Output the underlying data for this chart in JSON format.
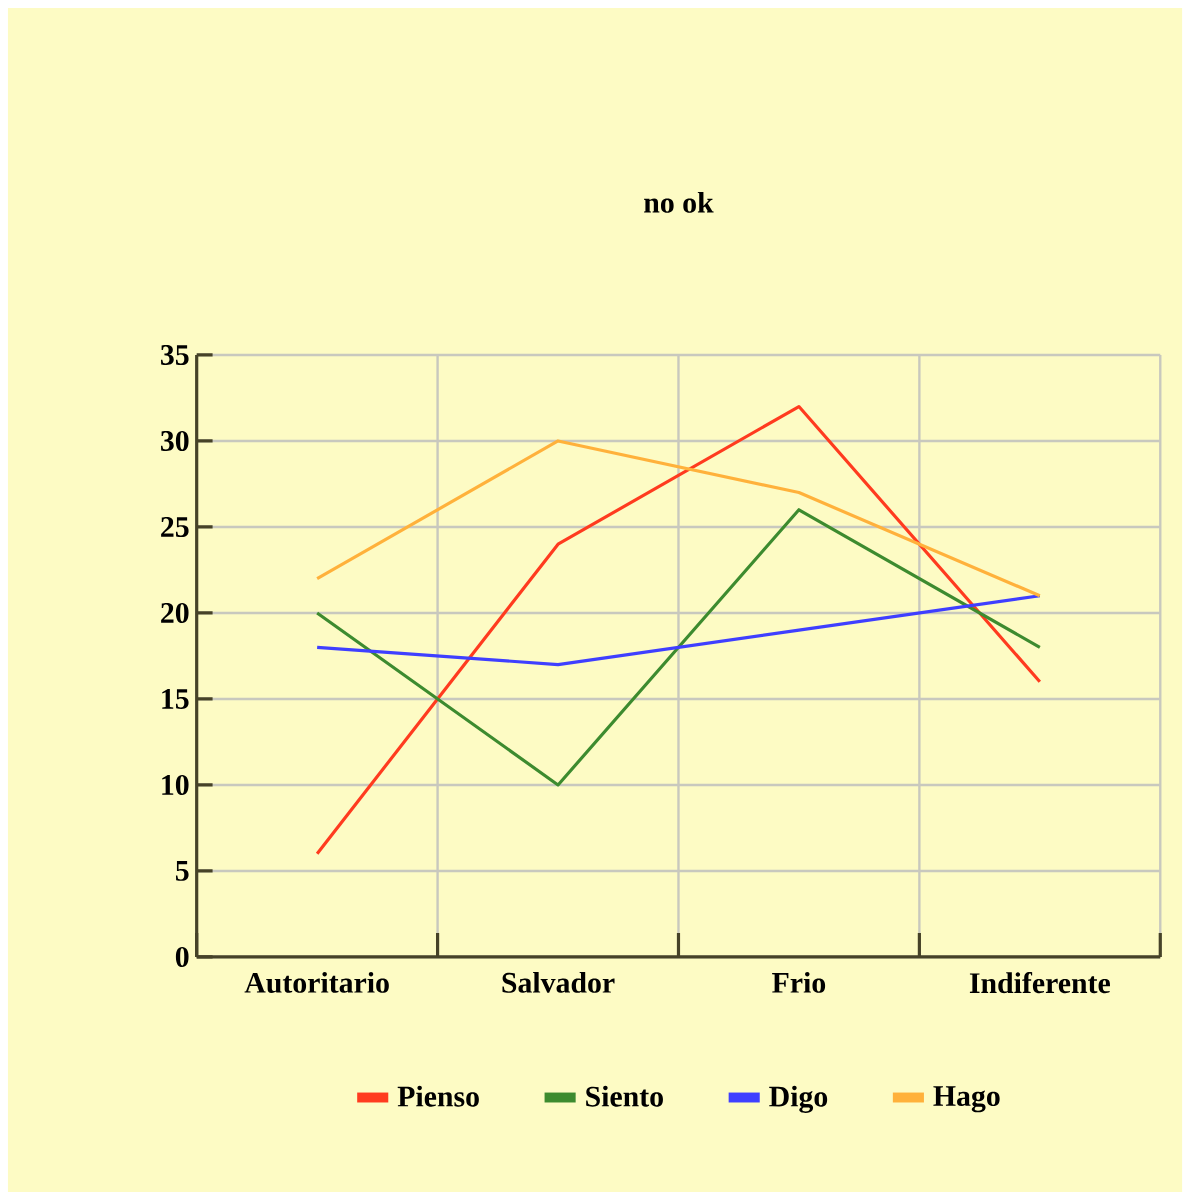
{
  "chart_data": {
    "type": "line",
    "title": "no ok",
    "categories": [
      "Autoritario",
      "Salvador",
      "Frio",
      "Indiferente"
    ],
    "series": [
      {
        "name": "Pienso",
        "color": "#ff3b1f",
        "values": [
          6,
          24,
          32,
          16
        ]
      },
      {
        "name": "Siento",
        "color": "#3d8b2f",
        "values": [
          20,
          10,
          26,
          18
        ]
      },
      {
        "name": "Digo",
        "color": "#3f3fff",
        "values": [
          18,
          17,
          19,
          21
        ]
      },
      {
        "name": "Hago",
        "color": "#ffb13b",
        "values": [
          22,
          30,
          27,
          21
        ]
      }
    ],
    "ylim": [
      0,
      35
    ],
    "yticks": [
      0,
      5,
      10,
      15,
      20,
      25,
      30,
      35
    ],
    "grid": true,
    "legend": "bottom"
  }
}
